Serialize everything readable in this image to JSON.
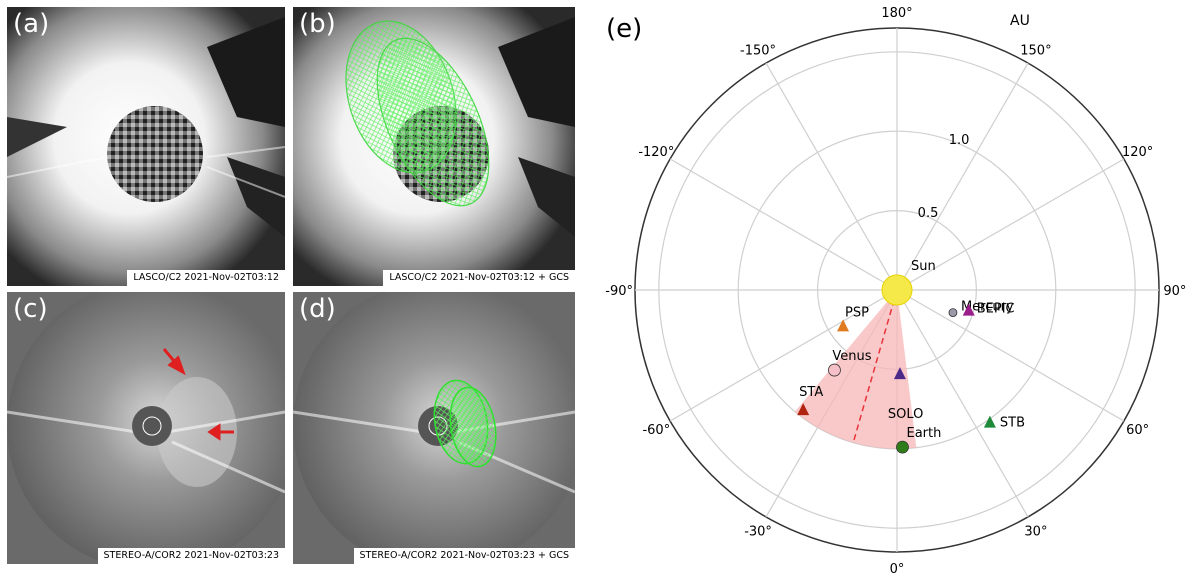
{
  "panels": [
    {
      "label": "(a)",
      "caption": "LASCO/C2 2021-Nov-02T03:12"
    },
    {
      "label": "(b)",
      "caption": "LASCO/C2 2021-Nov-02T03:12 + GCS"
    },
    {
      "label": "(c)",
      "caption": "STEREO-A/COR2 2021-Nov-02T03:23"
    },
    {
      "label": "(d)",
      "caption": "STEREO-A/COR2 2021-Nov-02T03:23 + GCS"
    }
  ],
  "polar": {
    "label": "(e)",
    "unit_label": "AU",
    "angle_ticks": [
      {
        "deg": 0,
        "text": "0°"
      },
      {
        "deg": 30,
        "text": "30°"
      },
      {
        "deg": 60,
        "text": "60°"
      },
      {
        "deg": 90,
        "text": "90°"
      },
      {
        "deg": 120,
        "text": "120°"
      },
      {
        "deg": 150,
        "text": "150°"
      },
      {
        "deg": 180,
        "text": "180°"
      },
      {
        "deg": -150,
        "text": "-150°"
      },
      {
        "deg": -120,
        "text": "-120°"
      },
      {
        "deg": -90,
        "text": "-90°"
      },
      {
        "deg": -60,
        "text": "-60°"
      },
      {
        "deg": -30,
        "text": "-30°"
      }
    ],
    "radial_ticks": [
      {
        "r": 0.5,
        "text": "0.5"
      },
      {
        "r": 1.0,
        "text": "1.0"
      }
    ],
    "r_grid": [
      0.5,
      1.0,
      1.5
    ],
    "r_max": 1.65,
    "cone": {
      "from_deg": -40,
      "to_deg": 7,
      "r": 1.0,
      "color": "#f7b6b6"
    },
    "cme_direction": {
      "deg": -16,
      "r": 1.0,
      "color": "#e8343a"
    },
    "bodies": [
      {
        "name": "Sun",
        "deg": 0,
        "r": 0,
        "marker": "sun",
        "color": "#f5e94a"
      },
      {
        "name": "Mercury",
        "deg": 68,
        "r": 0.38,
        "marker": "circle",
        "color": "#9a9aa8"
      },
      {
        "name": "BEPIC",
        "deg": 74,
        "r": 0.47,
        "marker": "triangle",
        "color": "#9b1d8a"
      },
      {
        "name": "PSP",
        "deg": -56,
        "r": 0.41,
        "marker": "triangle",
        "color": "#e07a1f"
      },
      {
        "name": "Venus",
        "deg": -38,
        "r": 0.64,
        "marker": "circle",
        "color": "#f5c0c8"
      },
      {
        "name": "SOLO",
        "deg": 2,
        "r": 0.53,
        "marker": "triangle",
        "color": "#4b2a8a"
      },
      {
        "name": "STA",
        "deg": -38,
        "r": 0.96,
        "marker": "triangle",
        "color": "#b0240f"
      },
      {
        "name": "Earth",
        "deg": 2,
        "r": 0.99,
        "marker": "circle",
        "color": "#2e7d1a"
      },
      {
        "name": "STB",
        "deg": 35,
        "r": 1.02,
        "marker": "triangle",
        "color": "#1f8a3a"
      }
    ]
  }
}
